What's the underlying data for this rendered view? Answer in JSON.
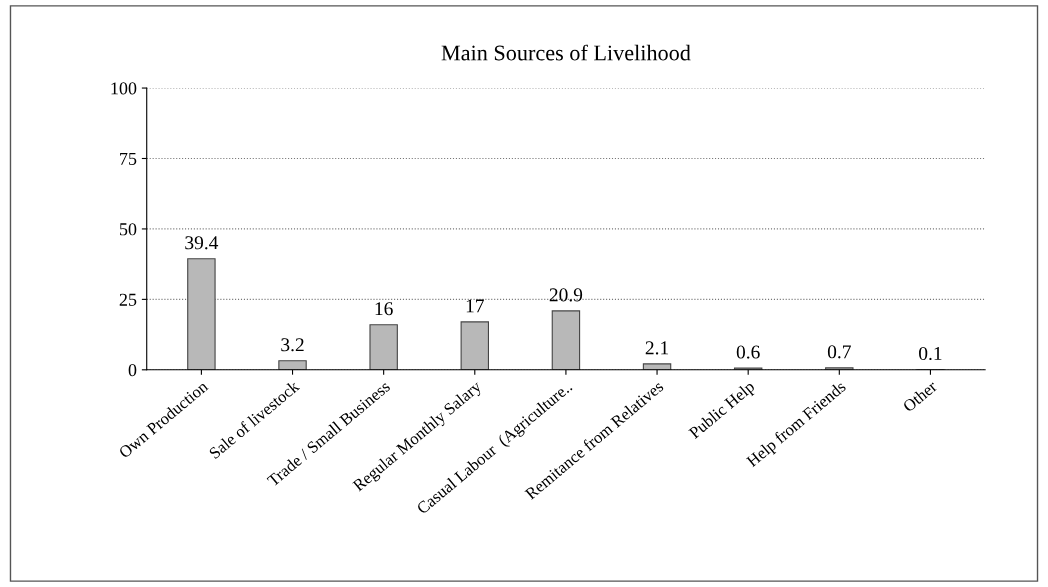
{
  "chart_data": {
    "type": "bar",
    "title": "Main Sources of Livelihood",
    "categories": [
      "Own Production",
      "Sale of livestock",
      "Trade / Small Business",
      "Regular Monthly Salary",
      "Casual Labour  (Agriculture..",
      "Remitance from Relatives",
      "Public Help",
      "Help from Friends",
      "Other"
    ],
    "values": [
      39.4,
      3.2,
      16,
      17,
      20.9,
      2.1,
      0.6,
      0.7,
      0.1
    ],
    "color": "#b8b8b8",
    "ylim": [
      0,
      100
    ],
    "yticks": [
      0,
      25,
      50,
      75,
      100
    ],
    "grid": "y",
    "data_labels": true
  }
}
